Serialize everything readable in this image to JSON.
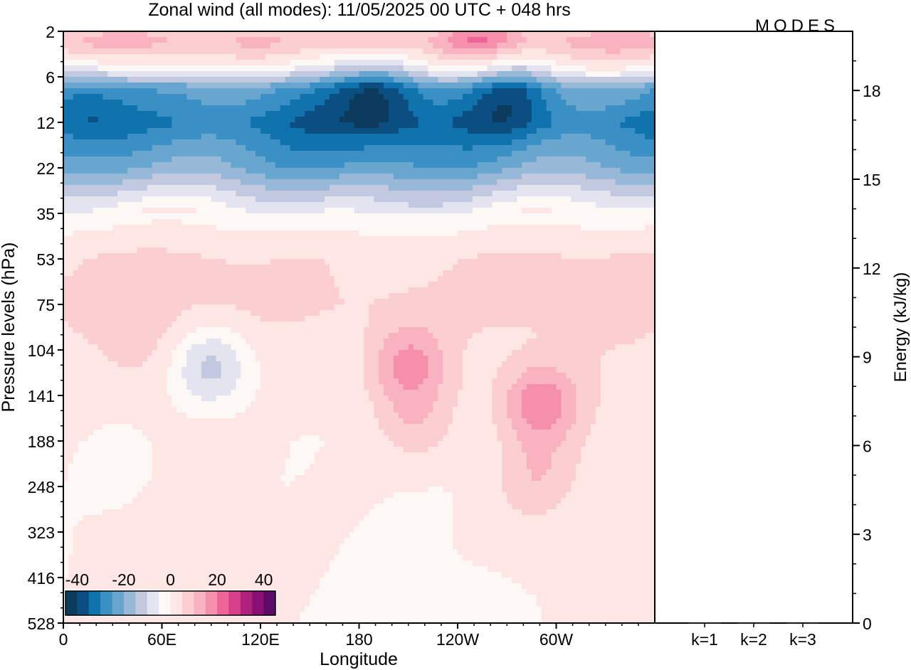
{
  "logo": "MODES",
  "chart_data": [
    {
      "type": "heatmap",
      "title": "Zonal wind (all modes):  11/05/2025  00 UTC  + 048 hrs",
      "xlabel": "Longitude",
      "ylabel": "Pressure levels (hPa)",
      "x_ticks": [
        "0",
        "60E",
        "120E",
        "180",
        "120W",
        "60W"
      ],
      "y_ticks": [
        "2",
        "6",
        "12",
        "22",
        "35",
        "53",
        "75",
        "104",
        "141",
        "188",
        "248",
        "323",
        "416",
        "528"
      ],
      "colorbar": {
        "tick_labels": [
          "-40",
          "-20",
          "0",
          "20",
          "40"
        ],
        "levels": [
          -45,
          -40,
          -35,
          -30,
          -25,
          -20,
          -15,
          -10,
          -5,
          0,
          5,
          10,
          15,
          20,
          25,
          30,
          35,
          40,
          45
        ],
        "colors": [
          "#0d3b5e",
          "#0b4f82",
          "#1173ad",
          "#3a8fc4",
          "#69a6cf",
          "#97b8d7",
          "#c2c8e0",
          "#e4e4f0",
          "#fdf7f5",
          "#fde6e3",
          "#fbcfd2",
          "#f9b2bf",
          "#f58fab",
          "#ec6596",
          "#d63f8a",
          "#b0207d",
          "#8a0f73",
          "#5e0a6a"
        ]
      },
      "bands": [
        {
          "level_index": 0.0,
          "value": 6
        },
        {
          "level_index": 0.25,
          "value": 9
        },
        {
          "level_index": 0.5,
          "value": 4
        },
        {
          "level_index": 0.75,
          "value": -2
        },
        {
          "level_index": 1.0,
          "value": -12
        },
        {
          "level_index": 1.25,
          "value": -25
        },
        {
          "level_index": 2.0,
          "value": -33
        },
        {
          "level_index": 3.0,
          "value": -22
        },
        {
          "level_index": 3.5,
          "value": -12
        },
        {
          "level_index": 4.0,
          "value": -3
        },
        {
          "level_index": 5.0,
          "value": 5
        },
        {
          "level_index": 6.0,
          "value": 6
        },
        {
          "level_index": 7.0,
          "value": 3
        },
        {
          "level_index": 9.0,
          "value": 1
        },
        {
          "level_index": 13.0,
          "value": 0
        }
      ],
      "features": [
        {
          "lon": 185,
          "level_index": 0.1,
          "value": 15
        },
        {
          "lon": 255,
          "level_index": 0.1,
          "value": 20
        },
        {
          "lon": 190,
          "level_index": 1.3,
          "value": -38
        },
        {
          "lon": 270,
          "level_index": 1.3,
          "value": -38
        },
        {
          "lon": 15,
          "level_index": 1.4,
          "value": -33
        },
        {
          "lon": 50,
          "level_index": 7.0,
          "value": 6
        },
        {
          "lon": 90,
          "level_index": 7.4,
          "value": -12
        },
        {
          "lon": 210,
          "level_index": 7.3,
          "value": 17
        },
        {
          "lon": 215,
          "level_index": 8.6,
          "value": 9
        },
        {
          "lon": 290,
          "level_index": 8.2,
          "value": 18
        },
        {
          "lon": 288,
          "level_index": 9.8,
          "value": 8
        },
        {
          "lon": 325,
          "level_index": 6.5,
          "value": 5
        },
        {
          "lon": 35,
          "level_index": 9.5,
          "value": -3
        },
        {
          "lon": 250,
          "level_index": 12.8,
          "value": -4
        }
      ]
    },
    {
      "type": "bar",
      "ylabel": "Energy (kJ/kg)",
      "categories": [
        "k=1",
        "k=2",
        "k=3"
      ],
      "values": [
        0.02,
        0.01,
        0.01
      ],
      "ylim": [
        0,
        20
      ],
      "y_ticks": [
        0,
        3,
        6,
        9,
        12,
        15,
        18
      ]
    }
  ]
}
